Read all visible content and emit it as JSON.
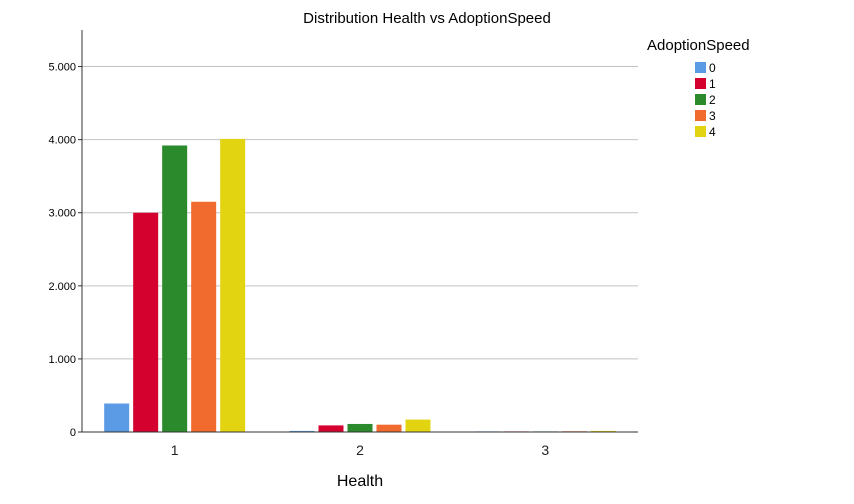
{
  "chart_data": {
    "type": "bar",
    "title": "Distribution Health vs AdoptionSpeed",
    "xlabel": "Health",
    "ylabel": "",
    "categories": [
      "1",
      "2",
      "3"
    ],
    "ylim": [
      0,
      5500
    ],
    "yticks": [
      0,
      1000,
      2000,
      3000,
      4000,
      5000
    ],
    "ytick_labels": [
      "0",
      "1.000",
      "2.000",
      "3.000",
      "4.000",
      "5.000"
    ],
    "grid": true,
    "legend": {
      "title": "AdoptionSpeed",
      "placement": "right"
    },
    "series": [
      {
        "name": "0",
        "color": "#5b9be6",
        "values": [
          390,
          15,
          5
        ]
      },
      {
        "name": "1",
        "color": "#d4002e",
        "values": [
          3000,
          90,
          5
        ]
      },
      {
        "name": "2",
        "color": "#2b8a2b",
        "values": [
          3920,
          110,
          5
        ]
      },
      {
        "name": "3",
        "color": "#f26b2e",
        "values": [
          3150,
          100,
          10
        ]
      },
      {
        "name": "4",
        "color": "#e2d411",
        "values": [
          4010,
          170,
          15
        ]
      }
    ]
  }
}
